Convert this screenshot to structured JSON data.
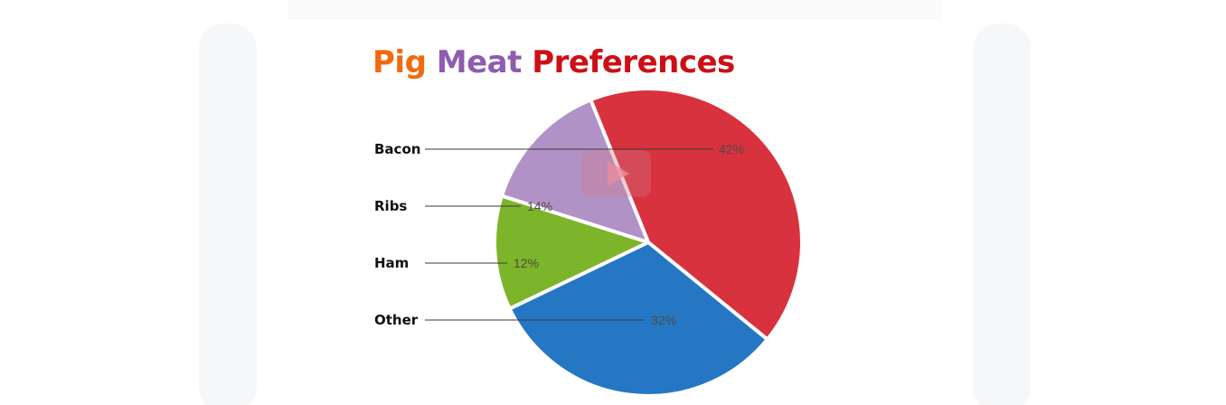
{
  "title": {
    "word1": "Pig",
    "word2": "Meat",
    "word3": "Preferences",
    "colors": [
      "#f26a10",
      "#8e5cb0",
      "#cc1016"
    ]
  },
  "play_icon": "play-icon",
  "chart_data": {
    "type": "pie",
    "title": "Pig Meat Preferences",
    "legend": "left",
    "slices": [
      {
        "label": "Bacon",
        "value": 42,
        "value_label": "42%",
        "color": "#d8323e"
      },
      {
        "label": "Other",
        "value": 32,
        "value_label": "32%",
        "color": "#2677c3"
      },
      {
        "label": "Ham",
        "value": 12,
        "value_label": "12%",
        "color": "#7db52a"
      },
      {
        "label": "Ribs",
        "value": 14,
        "value_label": "14%",
        "color": "#b192c6"
      }
    ],
    "legend_order": [
      "Bacon",
      "Ribs",
      "Ham",
      "Other"
    ]
  }
}
